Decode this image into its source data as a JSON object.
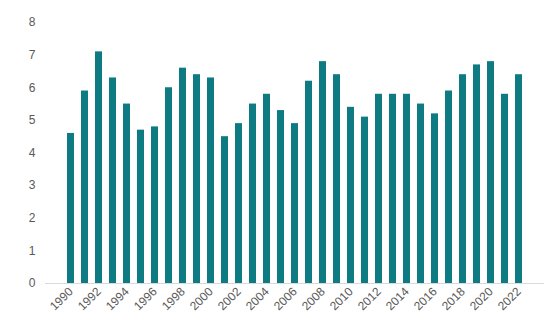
{
  "chart_data": {
    "type": "bar",
    "categories": [
      "1990",
      null,
      "1992",
      null,
      "1994",
      null,
      "1996",
      null,
      "1998",
      null,
      "2000",
      null,
      "2002",
      null,
      "2004",
      null,
      "2006",
      null,
      "2008",
      null,
      "2010",
      null,
      "2012",
      null,
      "2014",
      null,
      "2016",
      null,
      "2018",
      null,
      "2020",
      null,
      "2022"
    ],
    "values": [
      4.6,
      5.9,
      7.1,
      6.3,
      5.5,
      4.7,
      4.8,
      6.0,
      6.6,
      6.4,
      6.3,
      4.5,
      4.9,
      5.5,
      5.8,
      5.3,
      4.9,
      6.2,
      6.8,
      6.4,
      5.4,
      5.1,
      5.8,
      5.8,
      5.8,
      5.5,
      5.2,
      5.9,
      6.4,
      6.7,
      6.8,
      5.8,
      6.4
    ],
    "color": "#0e7a82",
    "ylim": [
      0,
      8
    ],
    "yticks": [
      0,
      1,
      2,
      3,
      4,
      5,
      6,
      7,
      8
    ],
    "grid": false
  }
}
